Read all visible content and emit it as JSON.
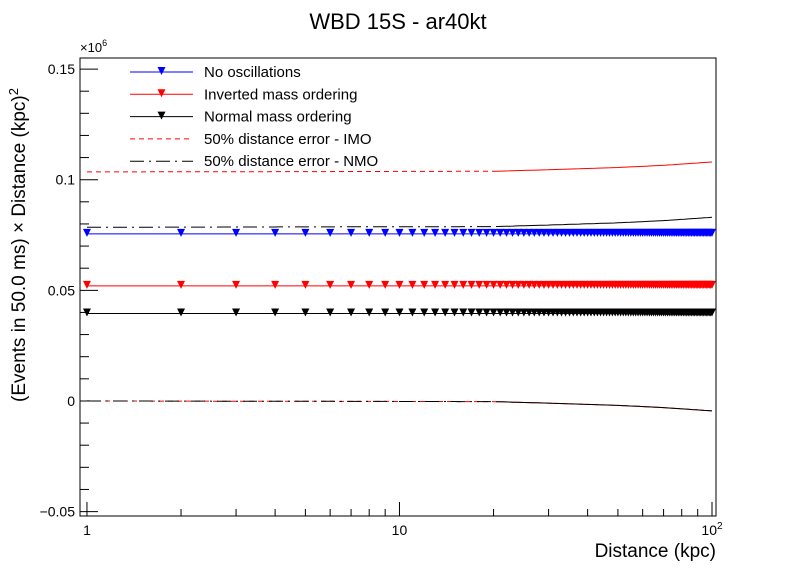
{
  "chart_data": {
    "type": "line",
    "title": "WBD 15S - ar40kt",
    "xlabel": "Distance (kpc)",
    "ylabel": "(Events in 50.0 ms) × Distance (kpc)",
    "ylabel_superscript": "2",
    "y_multiplier": "×10",
    "y_multiplier_exponent": "6",
    "x_scale": "log",
    "xlim": [
      0.95,
      103
    ],
    "ylim": [
      -0.052,
      0.155
    ],
    "x_ticks": [
      {
        "value": 1,
        "label": "1"
      },
      {
        "value": 10,
        "label": "10"
      },
      {
        "value": 100,
        "label": "10",
        "sup": "2"
      }
    ],
    "y_ticks": [
      {
        "value": -0.05,
        "label": "−0.05"
      },
      {
        "value": 0,
        "label": "0"
      },
      {
        "value": 0.05,
        "label": "0.05"
      },
      {
        "value": 0.1,
        "label": "0.1"
      },
      {
        "value": 0.15,
        "label": "0.15"
      }
    ],
    "grid": false,
    "legend_position": "top-left",
    "series": [
      {
        "name": "No oscillations",
        "color": "#0000ff",
        "style": "marker-line",
        "marker": "triangle-down",
        "y_const": 0.0755
      },
      {
        "name": "Inverted mass ordering",
        "color": "#ff0000",
        "style": "marker-line",
        "marker": "triangle-down",
        "y_const": 0.052
      },
      {
        "name": "Normal mass ordering",
        "color": "#000000",
        "style": "marker-line",
        "marker": "triangle-down",
        "y_const": 0.0395
      },
      {
        "name": "50% distance error - IMO",
        "color": "#ff0000",
        "style": "dashed",
        "upper": {
          "x": [
            1,
            20,
            30,
            50,
            70,
            100
          ],
          "y": [
            0.1035,
            0.1038,
            0.1045,
            0.1055,
            0.1065,
            0.108
          ]
        },
        "lower": {
          "x": [
            1,
            20,
            30,
            50,
            70,
            100
          ],
          "y": [
            0,
            -0.0003,
            -0.001,
            -0.002,
            -0.003,
            -0.0045
          ]
        }
      },
      {
        "name": "50% distance error - NMO",
        "color": "#000000",
        "style": "dash-dot",
        "upper": {
          "x": [
            1,
            20,
            30,
            50,
            70,
            100
          ],
          "y": [
            0.0785,
            0.0788,
            0.0795,
            0.0805,
            0.0815,
            0.083
          ]
        },
        "lower": {
          "x": [
            1,
            20,
            30,
            50,
            70,
            100
          ],
          "y": [
            0,
            -0.0003,
            -0.001,
            -0.002,
            -0.003,
            -0.0045
          ]
        }
      }
    ],
    "marker_x": [
      1,
      2,
      3,
      4,
      5,
      6,
      7,
      8,
      9,
      10,
      11,
      12,
      13,
      14,
      15,
      16,
      17,
      18,
      19,
      20,
      21,
      22,
      23,
      24,
      25,
      26,
      27,
      28,
      29,
      30,
      31,
      32,
      33,
      34,
      35,
      36,
      37,
      38,
      39,
      40,
      41,
      42,
      43,
      44,
      45,
      46,
      47,
      48,
      49,
      50,
      51,
      52,
      53,
      54,
      55,
      56,
      57,
      58,
      59,
      60,
      61,
      62,
      63,
      64,
      65,
      66,
      67,
      68,
      69,
      70,
      71,
      72,
      73,
      74,
      75,
      76,
      77,
      78,
      79,
      80,
      81,
      82,
      83,
      84,
      85,
      86,
      87,
      88,
      89,
      90,
      91,
      92,
      93,
      94,
      95,
      96,
      97,
      98,
      99,
      100
    ]
  }
}
